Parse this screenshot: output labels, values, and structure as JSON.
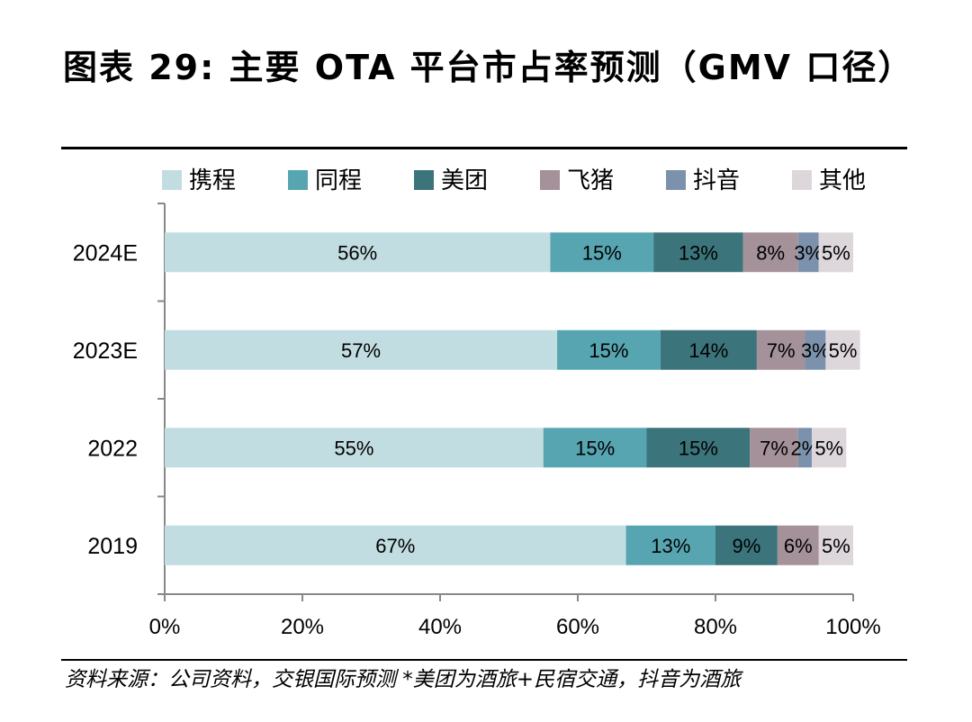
{
  "title": "图表 29: 主要 OTA 平台市占率预测（GMV 口径）",
  "source": "资料来源：公司资料，交银国际预测   *美团为酒旅+民宿交通，抖音为酒旅",
  "chart_data": {
    "type": "bar",
    "orientation": "horizontal",
    "stacked": true,
    "title": "",
    "xlabel": "",
    "ylabel": "",
    "xlim": [
      0,
      100
    ],
    "x_ticks": [
      "0%",
      "20%",
      "40%",
      "60%",
      "80%",
      "100%"
    ],
    "categories": [
      "2024E",
      "2023E",
      "2022",
      "2019"
    ],
    "legend_position": "top",
    "grid": false,
    "series": [
      {
        "name": "携程",
        "color": "#c2dde1",
        "values": [
          56,
          57,
          55,
          67
        ],
        "labels": [
          "56%",
          "57%",
          "55%",
          "67%"
        ]
      },
      {
        "name": "同程",
        "color": "#57a5b1",
        "values": [
          15,
          15,
          15,
          13
        ],
        "labels": [
          "15%",
          "15%",
          "15%",
          "13%"
        ]
      },
      {
        "name": "美团",
        "color": "#3b747b",
        "values": [
          13,
          14,
          15,
          9
        ],
        "labels": [
          "13%",
          "14%",
          "15%",
          "9%"
        ]
      },
      {
        "name": "飞猪",
        "color": "#a49199",
        "values": [
          8,
          7,
          7,
          6
        ],
        "labels": [
          "8%",
          "7%",
          "7%",
          "6%"
        ]
      },
      {
        "name": "抖音",
        "color": "#7c92ac",
        "values": [
          3,
          3,
          2,
          0
        ],
        "labels": [
          "3%",
          "3%",
          "2%",
          ""
        ]
      },
      {
        "name": "其他",
        "color": "#ddd7dc",
        "values": [
          5,
          5,
          5,
          5
        ],
        "labels": [
          "5%",
          "5%",
          "5%",
          "5%"
        ]
      }
    ]
  }
}
